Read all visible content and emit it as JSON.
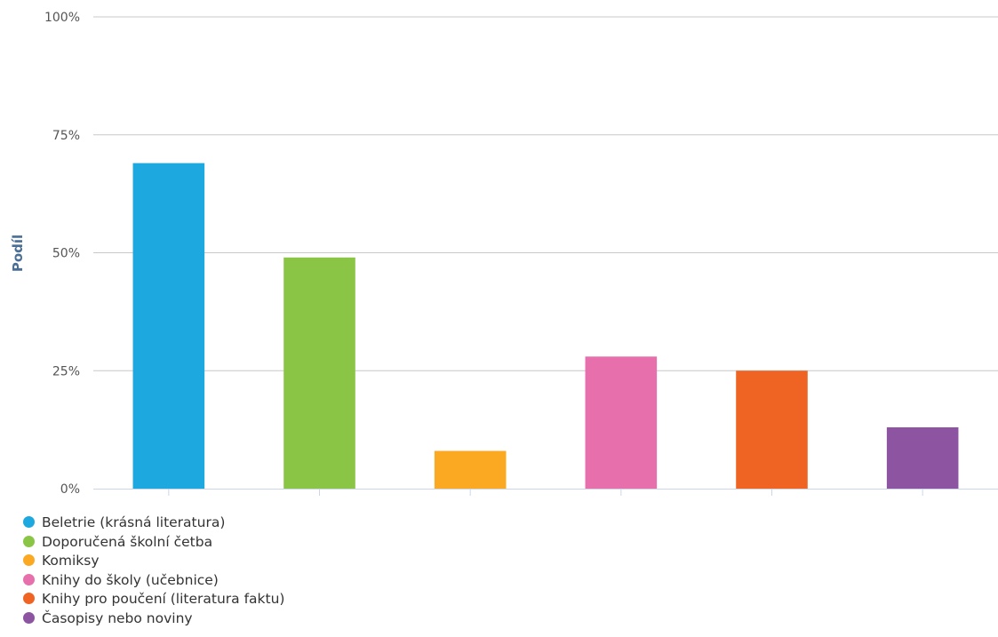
{
  "chart_data": {
    "type": "bar",
    "title": "",
    "xlabel": "",
    "ylabel": "Podíl",
    "ylim": [
      0,
      100
    ],
    "yticks": [
      0,
      25,
      50,
      75,
      100
    ],
    "ytick_suffix": "%",
    "grid": true,
    "legend_position": "bottom-left",
    "categories": [
      "Beletrie (krásná literatura)",
      "Doporučená školní četba",
      "Komiksy",
      "Knihy do školy (učebnice)",
      "Knihy pro poučení (literatura faktu)",
      "Časopisy nebo noviny"
    ],
    "values": [
      69,
      49,
      8,
      28,
      25,
      13
    ],
    "colors": [
      "#1ea8e0",
      "#8bc546",
      "#fba823",
      "#e76fab",
      "#f06423",
      "#8c54a1"
    ]
  }
}
